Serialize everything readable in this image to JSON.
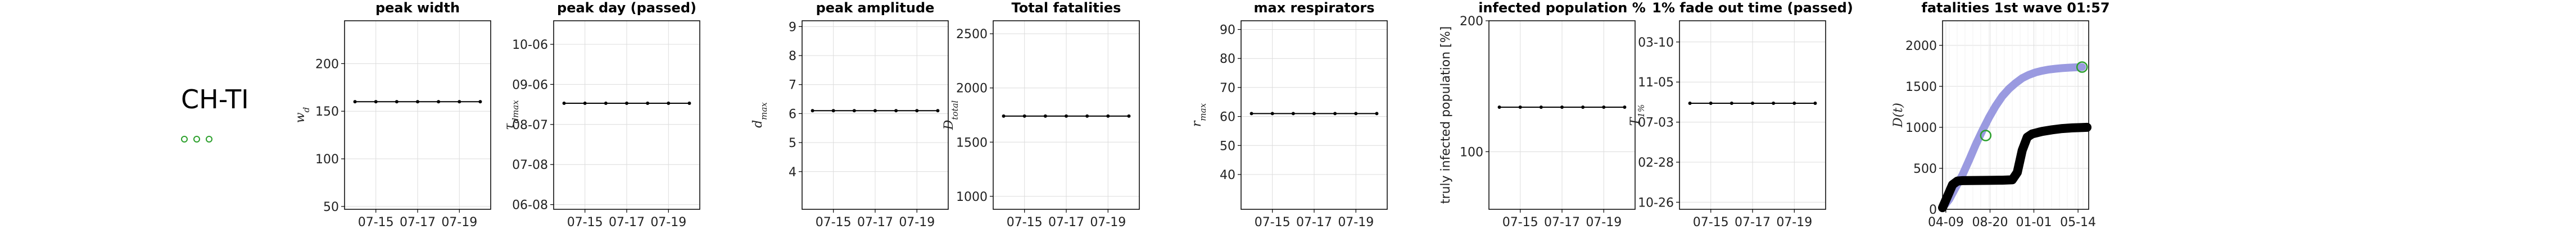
{
  "region": {
    "name": "CH-TI",
    "marker_color": "#2ca02c"
  },
  "chart_data": [
    {
      "type": "line",
      "title": "peak width",
      "ylabel": "w_d",
      "ylabel_math": true,
      "x": [
        "07-14",
        "07-15",
        "07-16",
        "07-17",
        "07-18",
        "07-19",
        "07-20"
      ],
      "xticks": [
        "07-15",
        "07-17",
        "07-19"
      ],
      "ylim": [
        47,
        245
      ],
      "yticks": [
        50,
        100,
        150,
        200
      ],
      "ytick_labels": [
        "50",
        "100",
        "150",
        "200"
      ],
      "series": [
        {
          "values": [
            160,
            160,
            160,
            160,
            160,
            160,
            160
          ]
        }
      ],
      "grid": true
    },
    {
      "type": "line",
      "title": "peak day (passed)",
      "ylabel": "τ_dmax",
      "ylabel_math": true,
      "x": [
        "07-14",
        "07-15",
        "07-16",
        "07-17",
        "07-18",
        "07-19",
        "07-20"
      ],
      "xticks": [
        "07-15",
        "07-17",
        "07-19"
      ],
      "ylim": [
        0,
        8
      ],
      "yticks": [
        0.2,
        1.9,
        3.6,
        5.3,
        7.0
      ],
      "ytick_labels": [
        "06-08",
        "07-08",
        "08-07",
        "09-06",
        "10-06"
      ],
      "series": [
        {
          "values": [
            4.5,
            4.5,
            4.5,
            4.5,
            4.5,
            4.5,
            4.5
          ]
        }
      ],
      "grid": true
    },
    {
      "type": "line",
      "title": "peak amplitude",
      "ylabel": "d_max",
      "ylabel_math": true,
      "x": [
        "07-14",
        "07-15",
        "07-16",
        "07-17",
        "07-18",
        "07-19",
        "07-20"
      ],
      "xticks": [
        "07-15",
        "07-17",
        "07-19"
      ],
      "ylim": [
        2.7,
        9.2
      ],
      "yticks": [
        4,
        5,
        6,
        7,
        8,
        9
      ],
      "ytick_labels": [
        "4",
        "5",
        "6",
        "7",
        "8",
        "9"
      ],
      "series": [
        {
          "values": [
            6.1,
            6.1,
            6.1,
            6.1,
            6.1,
            6.1,
            6.1
          ]
        }
      ],
      "grid": true
    },
    {
      "type": "line",
      "title": "Total fatalities",
      "ylabel": "D_total",
      "ylabel_math": true,
      "x": [
        "07-14",
        "07-15",
        "07-16",
        "07-17",
        "07-18",
        "07-19",
        "07-20"
      ],
      "xticks": [
        "07-15",
        "07-17",
        "07-19"
      ],
      "ylim": [
        880,
        2620
      ],
      "yticks": [
        1000,
        1500,
        2000,
        2500
      ],
      "ytick_labels": [
        "1000",
        "1500",
        "2000",
        "2500"
      ],
      "series": [
        {
          "values": [
            1740,
            1740,
            1740,
            1740,
            1740,
            1740,
            1740
          ]
        }
      ],
      "grid": true
    },
    {
      "type": "line",
      "title": "max respirators",
      "ylabel": "r_max",
      "ylabel_math": true,
      "x": [
        "07-14",
        "07-15",
        "07-16",
        "07-17",
        "07-18",
        "07-19",
        "07-20"
      ],
      "xticks": [
        "07-15",
        "07-17",
        "07-19"
      ],
      "ylim": [
        28,
        93
      ],
      "yticks": [
        40,
        50,
        60,
        70,
        80,
        90
      ],
      "ytick_labels": [
        "40",
        "50",
        "60",
        "70",
        "80",
        "90"
      ],
      "series": [
        {
          "values": [
            61,
            61,
            61,
            61,
            61,
            61,
            61
          ]
        }
      ],
      "grid": true
    },
    {
      "type": "line",
      "title": "infected population %",
      "ylabel": "truly infected population [%]",
      "ylabel_math": false,
      "x": [
        "07-14",
        "07-15",
        "07-16",
        "07-17",
        "07-18",
        "07-19",
        "07-20"
      ],
      "xticks": [
        "07-15",
        "07-17",
        "07-19"
      ],
      "ylim": [
        56,
        200
      ],
      "yticks": [
        100,
        200
      ],
      "ytick_labels": [
        "100",
        "200"
      ],
      "series": [
        {
          "values": [
            134,
            134,
            134,
            134,
            134,
            134,
            134
          ]
        }
      ],
      "grid": true
    },
    {
      "type": "line",
      "title": "1% fade out time (passed)",
      "ylabel": "T_1%",
      "ylabel_math": true,
      "x": [
        "07-14",
        "07-15",
        "07-16",
        "07-17",
        "07-18",
        "07-19",
        "07-20"
      ],
      "xticks": [
        "07-15",
        "07-17",
        "07-19"
      ],
      "ylim": [
        0,
        8
      ],
      "yticks": [
        0.3,
        2.0,
        3.7,
        5.4,
        7.1
      ],
      "ytick_labels": [
        "10-26",
        "02-28",
        "07-03",
        "11-05",
        "03-10"
      ],
      "series": [
        {
          "values": [
            4.5,
            4.5,
            4.5,
            4.5,
            4.5,
            4.5,
            4.5
          ]
        }
      ],
      "grid": true
    },
    {
      "type": "line",
      "title": "fatalities 1st wave 01:57",
      "ylabel": "D(t)",
      "ylabel_math": true,
      "xlim": [
        0,
        440
      ],
      "xticks": [
        10,
        143,
        275,
        408
      ],
      "xtick_labels": [
        "04-09",
        "08-20",
        "01-01",
        "05-14"
      ],
      "ylim": [
        0,
        2300
      ],
      "yticks": [
        0,
        500,
        1000,
        1500,
        2000
      ],
      "ytick_labels": [
        "0",
        "500",
        "1000",
        "1500",
        "2000"
      ],
      "series": [
        {
          "color": "#9a9ae0",
          "points": [
            [
              0,
              20
            ],
            [
              20,
              120
            ],
            [
              40,
              270
            ],
            [
              60,
              420
            ],
            [
              80,
              600
            ],
            [
              100,
              790
            ],
            [
              120,
              960
            ],
            [
              140,
              1120
            ],
            [
              160,
              1260
            ],
            [
              180,
              1380
            ],
            [
              200,
              1470
            ],
            [
              220,
              1540
            ],
            [
              240,
              1600
            ],
            [
              260,
              1640
            ],
            [
              280,
              1670
            ],
            [
              300,
              1690
            ],
            [
              320,
              1705
            ],
            [
              340,
              1715
            ],
            [
              360,
              1722
            ],
            [
              380,
              1728
            ],
            [
              400,
              1732
            ],
            [
              420,
              1735
            ]
          ]
        },
        {
          "color": "#000000",
          "points": [
            [
              0,
              20
            ],
            [
              15,
              160
            ],
            [
              30,
              300
            ],
            [
              45,
              345
            ],
            [
              60,
              350
            ],
            [
              100,
              352
            ],
            [
              140,
              353
            ],
            [
              180,
              355
            ],
            [
              210,
              360
            ],
            [
              225,
              450
            ],
            [
              240,
              720
            ],
            [
              255,
              880
            ],
            [
              270,
              920
            ],
            [
              300,
              950
            ],
            [
              330,
              970
            ],
            [
              360,
              985
            ],
            [
              390,
              993
            ],
            [
              420,
              998
            ],
            [
              435,
              1000
            ]
          ]
        }
      ],
      "markers": [
        [
          130,
          900
        ],
        [
          420,
          1735
        ]
      ],
      "marker_color": "#2ca02c",
      "grid": true
    }
  ]
}
